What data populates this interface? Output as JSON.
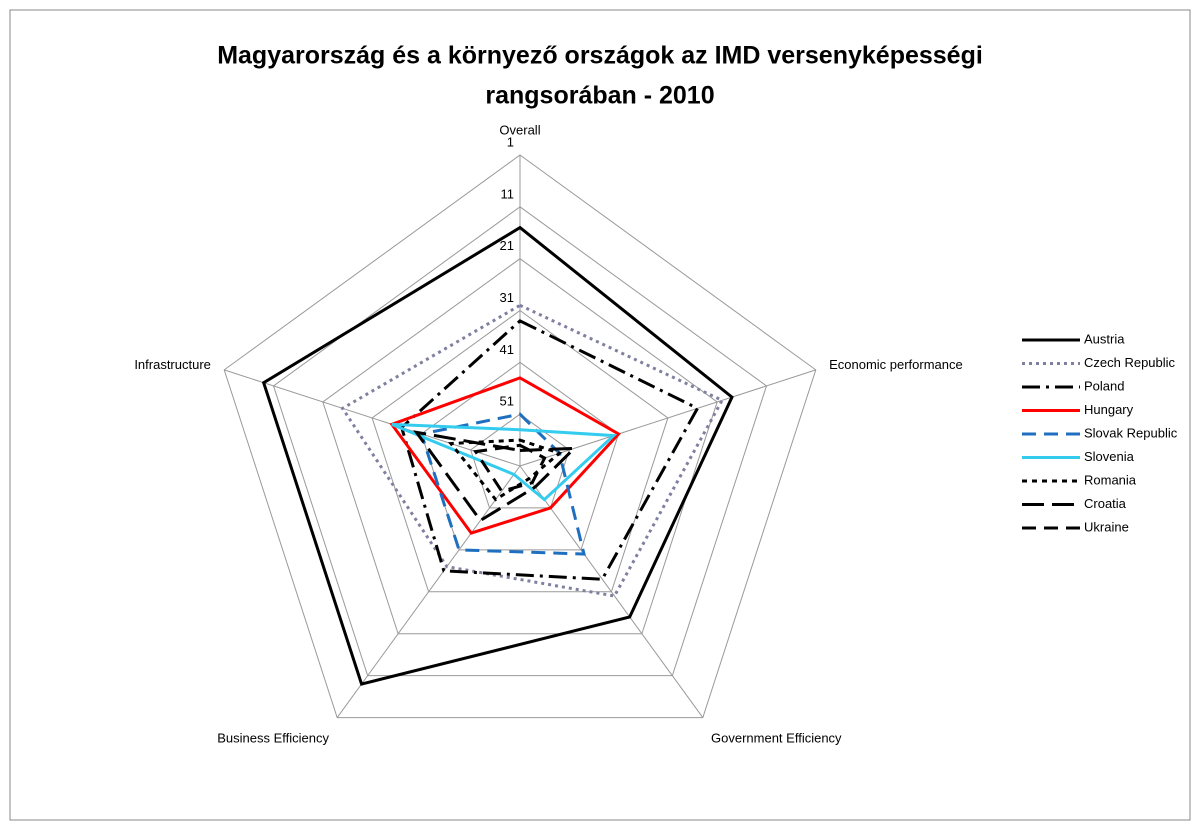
{
  "chart_data": {
    "type": "radar",
    "title": [
      "Magyarország és a környező országok az IMD versenyképességi",
      "rangsorában - 2010"
    ],
    "categories": [
      "Overall",
      "Economic performance",
      "Government Efficiency",
      "Business Efficiency",
      "Infrastructure"
    ],
    "ylim": [
      1,
      61
    ],
    "reversed": true,
    "yticks": [
      1,
      11,
      21,
      31,
      41,
      51
    ],
    "grid": true,
    "legend": "right",
    "series": [
      {
        "name": "Austria",
        "color": "#000000",
        "dash": "solid",
        "values": [
          15,
          18,
          25,
          9,
          9
        ]
      },
      {
        "name": "Czech Republic",
        "color": "#7f7fa0",
        "dash": "dot",
        "values": [
          30,
          20,
          30,
          37,
          25
        ]
      },
      {
        "name": "Poland",
        "color": "#000000",
        "dash": "dashdot",
        "values": [
          33,
          25,
          34,
          36,
          37
        ]
      },
      {
        "name": "Hungary",
        "color": "#ff0000",
        "dash": "solid",
        "values": [
          44,
          41,
          51,
          45,
          35
        ]
      },
      {
        "name": "Slovak Republic",
        "color": "#1f6fc0",
        "dash": "dash",
        "values": [
          51,
          53,
          40,
          41,
          41
        ]
      },
      {
        "name": "Slovenia",
        "color": "#33ccee",
        "dash": "solid",
        "values": [
          54,
          42,
          53,
          59,
          35
        ]
      },
      {
        "name": "Romania",
        "color": "#000000",
        "dash": "sqdot",
        "values": [
          56,
          53,
          58,
          53,
          47
        ]
      },
      {
        "name": "Croatia",
        "color": "#000000",
        "dash": "longdash",
        "values": [
          58,
          50,
          56,
          48,
          40
        ]
      },
      {
        "name": "Ukraine",
        "color": "#000000",
        "dash": "dash",
        "values": [
          57,
          56,
          57,
          55,
          52
        ]
      }
    ]
  }
}
